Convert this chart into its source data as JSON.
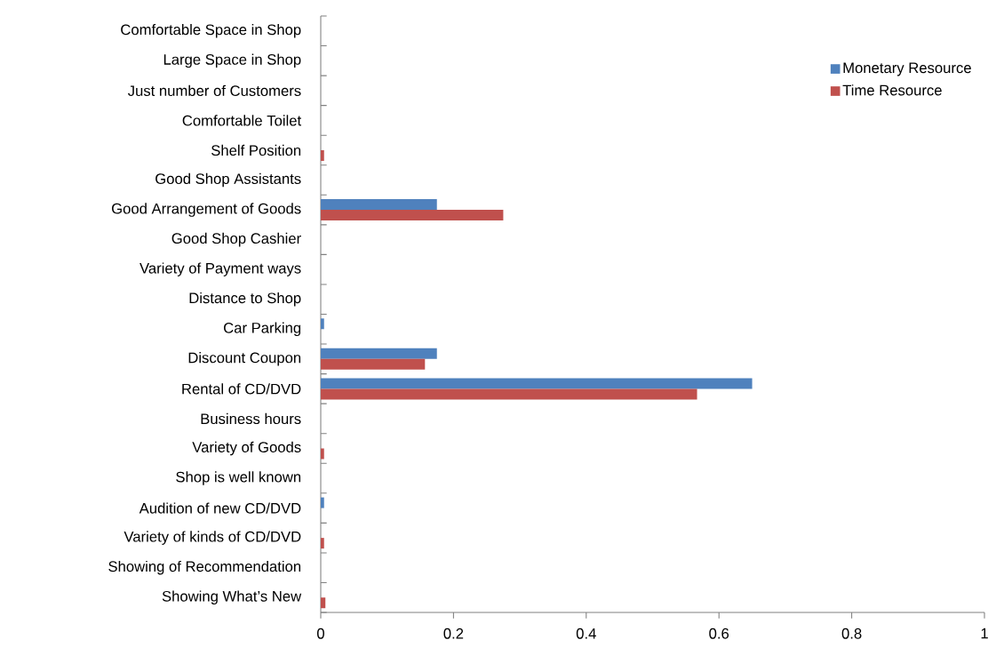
{
  "chart_data": {
    "type": "bar",
    "orientation": "horizontal",
    "categories": [
      "Comfortable Space in Shop",
      "Large Space in Shop",
      "Just number of Customers",
      "Comfortable Toilet",
      "Shelf Position",
      "Good Shop Assistants",
      "Good Arrangement of Goods",
      "Good Shop Cashier",
      "Variety of Payment ways",
      "Distance to Shop",
      "Car Parking",
      "Discount Coupon",
      "Rental of CD/DVD",
      "Business hours",
      "Variety of Goods",
      "Shop is well known",
      "Audition of new CD/DVD",
      "Variety of kinds of CD/DVD",
      "Showing of Recommendation",
      "Showing What’s New"
    ],
    "series": [
      {
        "name": "Monetary Resource",
        "color": "#4f81bd",
        "values": [
          0,
          0,
          0,
          0,
          0,
          0,
          0.175,
          0,
          0,
          0,
          0.005,
          0.175,
          0.65,
          0,
          0,
          0,
          0.005,
          0,
          0,
          0
        ]
      },
      {
        "name": "Time Resource",
        "color": "#c0504d",
        "values": [
          0,
          0,
          0,
          0,
          0.005,
          0,
          0.275,
          0,
          0,
          0,
          0,
          0.157,
          0.567,
          0,
          0.005,
          0,
          0,
          0.005,
          0,
          0.007
        ]
      }
    ],
    "xlim": [
      0,
      1
    ],
    "xticks": [
      0,
      0.2,
      0.4,
      0.6,
      0.8,
      1
    ],
    "legend": "top right",
    "grid": false
  }
}
